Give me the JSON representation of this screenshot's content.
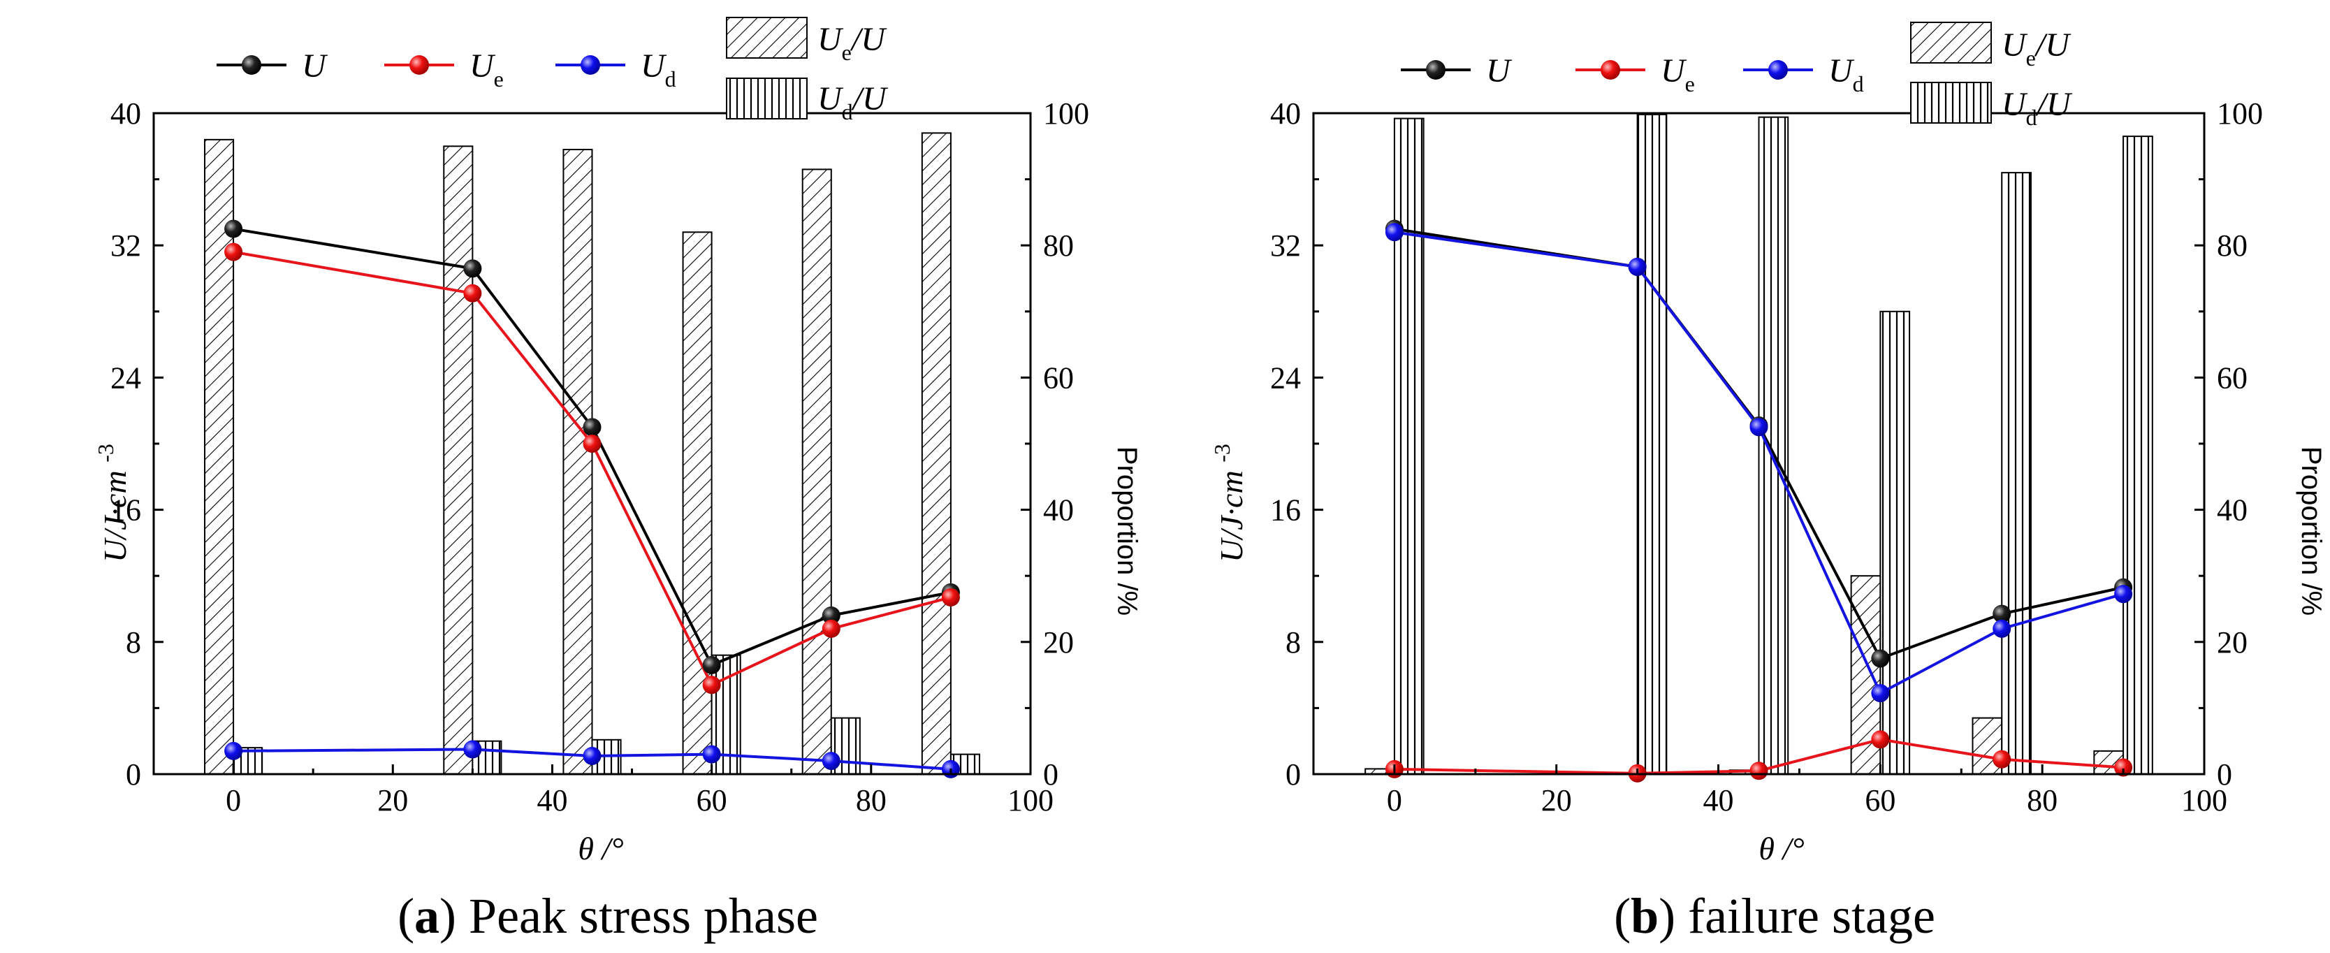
{
  "chart_data": [
    {
      "panel": "a",
      "type": "bar+line",
      "caption_letter": "a",
      "caption_text": "Peak stress phase",
      "xlabel": "θ /°",
      "ylabel_left": "U/J·cm-3",
      "ylabel_right": "Proportion /%",
      "xlim": [
        -10,
        100
      ],
      "ylim_left": [
        0,
        40
      ],
      "ylim_right": [
        0,
        100
      ],
      "x_ticks": [
        0,
        20,
        40,
        60,
        80,
        100
      ],
      "y_left_ticks": [
        0,
        8,
        16,
        24,
        32,
        40
      ],
      "y_right_ticks": [
        0,
        20,
        40,
        60,
        80,
        100
      ],
      "x": [
        0,
        30,
        45,
        60,
        75,
        90
      ],
      "bars": [
        {
          "name": "Ue/U",
          "pattern": "diagonal",
          "values": [
            96,
            95,
            94.5,
            82,
            91.5,
            97
          ]
        },
        {
          "name": "Ud/U",
          "pattern": "vertical",
          "values": [
            4,
            5,
            5.2,
            18,
            8.5,
            3
          ]
        }
      ],
      "series": [
        {
          "name": "U",
          "color": "#000000",
          "values": [
            33.0,
            30.6,
            21.0,
            6.6,
            9.6,
            11.0
          ]
        },
        {
          "name": "Ue",
          "color": "#e8141c",
          "values": [
            31.6,
            29.1,
            20.0,
            5.4,
            8.8,
            10.7
          ]
        },
        {
          "name": "Ud",
          "color": "#1414e0",
          "values": [
            1.4,
            1.5,
            1.1,
            1.2,
            0.8,
            0.3
          ]
        }
      ]
    },
    {
      "panel": "b",
      "type": "bar+line",
      "caption_letter": "b",
      "caption_text": "failure stage",
      "xlabel": "θ /°",
      "ylabel_left": "U/J·cm-3",
      "ylabel_right": "Proportion /%",
      "xlim": [
        -10,
        100
      ],
      "ylim_left": [
        0,
        40
      ],
      "ylim_right": [
        0,
        100
      ],
      "x_ticks": [
        0,
        20,
        40,
        60,
        80,
        100
      ],
      "y_left_ticks": [
        0,
        8,
        16,
        24,
        32,
        40
      ],
      "y_right_ticks": [
        0,
        20,
        40,
        60,
        80,
        100
      ],
      "x": [
        0,
        30,
        45,
        60,
        75,
        90
      ],
      "bars": [
        {
          "name": "Ue/U",
          "pattern": "diagonal",
          "values": [
            0.8,
            0.2,
            0.6,
            30,
            8.5,
            3.5
          ]
        },
        {
          "name": "Ud/U",
          "pattern": "vertical",
          "values": [
            99.2,
            99.8,
            99.4,
            70,
            91,
            96.5
          ]
        }
      ],
      "series": [
        {
          "name": "U",
          "color": "#000000",
          "values": [
            33.0,
            30.7,
            21.1,
            7.0,
            9.7,
            11.3
          ]
        },
        {
          "name": "Ue",
          "color": "#e8141c",
          "values": [
            0.3,
            0.05,
            0.2,
            2.1,
            0.9,
            0.4
          ]
        },
        {
          "name": "Ud",
          "color": "#1414e0",
          "values": [
            32.8,
            30.7,
            21.0,
            4.9,
            8.8,
            10.9
          ]
        }
      ]
    }
  ],
  "legend": {
    "U": "U",
    "Ue_main": "U",
    "Ue_sub": "e",
    "Ud_main": "U",
    "Ud_sub": "d",
    "UeU_main": "U",
    "UeU_sub": "e",
    "UeU_tail": "/U",
    "UdU_main": "U",
    "UdU_sub": "d",
    "UdU_tail": "/U"
  }
}
